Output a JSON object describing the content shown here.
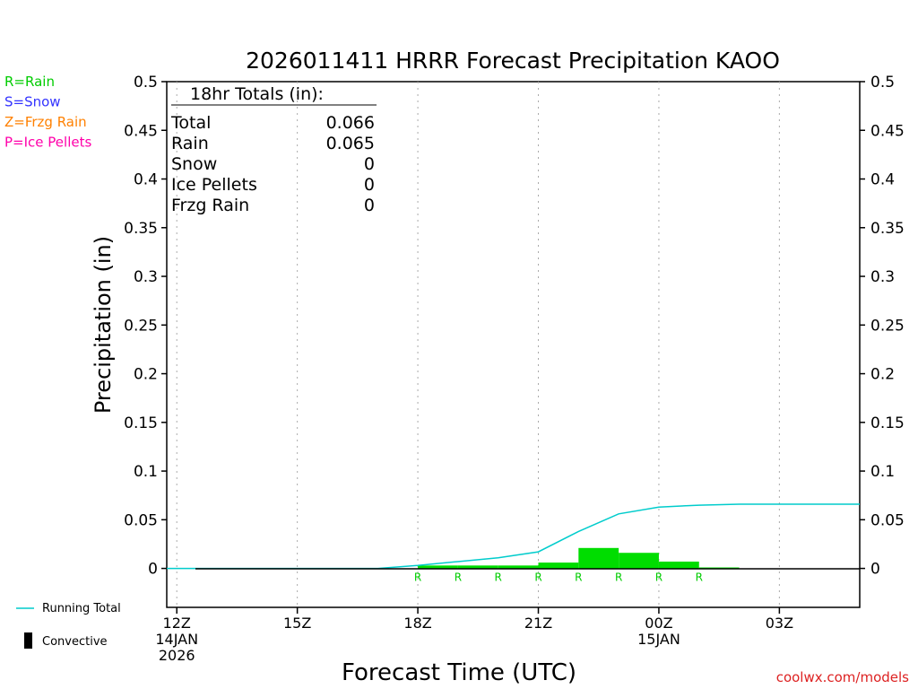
{
  "chart_data": {
    "type": "bar",
    "title": "2026011411 HRRR Forecast Precipitation KAOO",
    "xlabel": "Forecast Time (UTC)",
    "ylabel": "Precipitation (in)",
    "ylim": [
      -0.04,
      0.5
    ],
    "xlim_hours_from_12z": [
      -0.25,
      17.0
    ],
    "y_ticks": [
      "0",
      "0.05",
      "0.1",
      "0.15",
      "0.2",
      "0.25",
      "0.3",
      "0.35",
      "0.4",
      "0.45",
      "0.5"
    ],
    "y_tick_values": [
      0,
      0.05,
      0.1,
      0.15,
      0.2,
      0.25,
      0.3,
      0.35,
      0.4,
      0.45,
      0.5
    ],
    "x_ticks": [
      {
        "hour": 0,
        "lines": [
          "12Z",
          "14JAN",
          "2026"
        ]
      },
      {
        "hour": 3,
        "lines": [
          "15Z"
        ]
      },
      {
        "hour": 6,
        "lines": [
          "18Z"
        ]
      },
      {
        "hour": 9,
        "lines": [
          "21Z"
        ]
      },
      {
        "hour": 12,
        "lines": [
          "00Z",
          "15JAN"
        ]
      },
      {
        "hour": 15,
        "lines": [
          "03Z"
        ]
      }
    ],
    "legend_types": [
      {
        "label": "R=Rain",
        "color": "#00cc00"
      },
      {
        "label": "S=Snow",
        "color": "#3333ff"
      },
      {
        "label": "Z=Frzg Rain",
        "color": "#ff8000"
      },
      {
        "label": "P=Ice Pellets",
        "color": "#ff00aa"
      }
    ],
    "legend_series": [
      {
        "label": "Running Total",
        "color": "#00cccc"
      },
      {
        "label": "Convective",
        "color": "#000000"
      }
    ],
    "totals": {
      "header": "18hr Totals (in):",
      "rows": [
        {
          "name": "Total",
          "value": "0.066"
        },
        {
          "name": "Rain",
          "value": "0.065"
        },
        {
          "name": "Snow",
          "value": "0"
        },
        {
          "name": "Ice Pellets",
          "value": "0"
        },
        {
          "name": "Frzg Rain",
          "value": "0"
        }
      ]
    },
    "bars": [
      {
        "hour": 6,
        "value": 0.003
      },
      {
        "hour": 7,
        "value": 0.003
      },
      {
        "hour": 8,
        "value": 0.003
      },
      {
        "hour": 9,
        "value": 0.006
      },
      {
        "hour": 10,
        "value": 0.021
      },
      {
        "hour": 11,
        "value": 0.016
      },
      {
        "hour": 12,
        "value": 0.007
      },
      {
        "hour": 13,
        "value": 0.001
      }
    ],
    "precip_type_markers": [
      {
        "hour": 6,
        "type": "R"
      },
      {
        "hour": 7,
        "type": "R"
      },
      {
        "hour": 8,
        "type": "R"
      },
      {
        "hour": 9,
        "type": "R"
      },
      {
        "hour": 10,
        "type": "R"
      },
      {
        "hour": 11,
        "type": "R"
      },
      {
        "hour": 12,
        "type": "R"
      },
      {
        "hour": 13,
        "type": "R"
      }
    ],
    "running_total": {
      "x": [
        -0.25,
        5,
        6,
        7,
        8,
        9,
        10,
        11,
        12,
        13,
        14,
        15,
        16,
        17
      ],
      "y": [
        0,
        0,
        0.003,
        0.007,
        0.011,
        0.017,
        0.038,
        0.056,
        0.063,
        0.065,
        0.066,
        0.066,
        0.066,
        0.066
      ]
    },
    "colors": {
      "bar": "#00dd00",
      "running_total": "#00cccc",
      "rain_marker": "#00cc00",
      "axis": "#000000",
      "grid": "#aaaaaa",
      "credit": "#dd2222"
    },
    "credit": "coolwx.com/models"
  }
}
